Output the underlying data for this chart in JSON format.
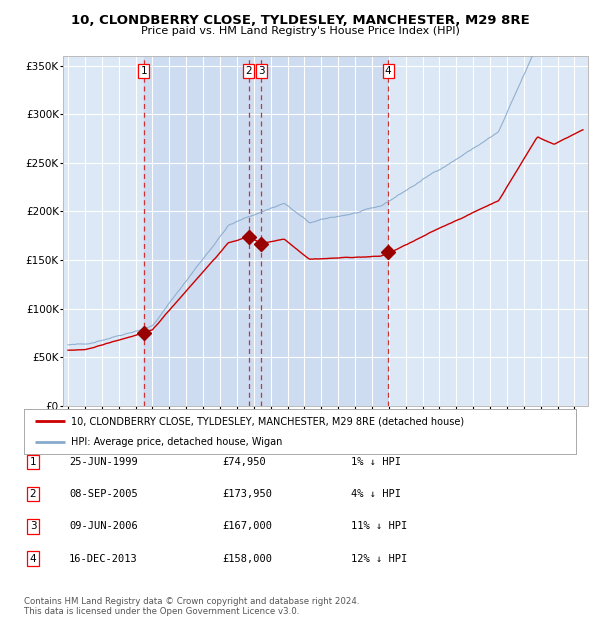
{
  "title": "10, CLONDBERRY CLOSE, TYLDESLEY, MANCHESTER, M29 8RE",
  "subtitle": "Price paid vs. HM Land Registry's House Price Index (HPI)",
  "legend_label_red": "10, CLONDBERRY CLOSE, TYLDESLEY, MANCHESTER, M29 8RE (detached house)",
  "legend_label_blue": "HPI: Average price, detached house, Wigan",
  "footer1": "Contains HM Land Registry data © Crown copyright and database right 2024.",
  "footer2": "This data is licensed under the Open Government Licence v3.0.",
  "transactions": [
    {
      "label": "1",
      "date": "25-JUN-1999",
      "price": 74950,
      "pct": "1%",
      "dir": "↓"
    },
    {
      "label": "2",
      "date": "08-SEP-2005",
      "price": 173950,
      "pct": "4%",
      "dir": "↓"
    },
    {
      "label": "3",
      "date": "09-JUN-2006",
      "price": 167000,
      "pct": "11%",
      "dir": "↓"
    },
    {
      "label": "4",
      "date": "16-DEC-2013",
      "price": 158000,
      "pct": "12%",
      "dir": "↓"
    }
  ],
  "transaction_years": [
    1999.49,
    2005.69,
    2006.44,
    2013.96
  ],
  "transaction_prices": [
    74950,
    173950,
    167000,
    158000
  ],
  "ylim": [
    0,
    360000
  ],
  "yticks": [
    0,
    50000,
    100000,
    150000,
    200000,
    250000,
    300000,
    350000
  ],
  "background_color": "#ffffff",
  "plot_bg_color": "#dce8f5",
  "grid_color": "#ffffff",
  "red_line_color": "#cc0000",
  "blue_line_color": "#88aacc",
  "marker_color": "#990000",
  "dashed_line_color": "#cc3333",
  "shade_color": "#c8d8ee"
}
